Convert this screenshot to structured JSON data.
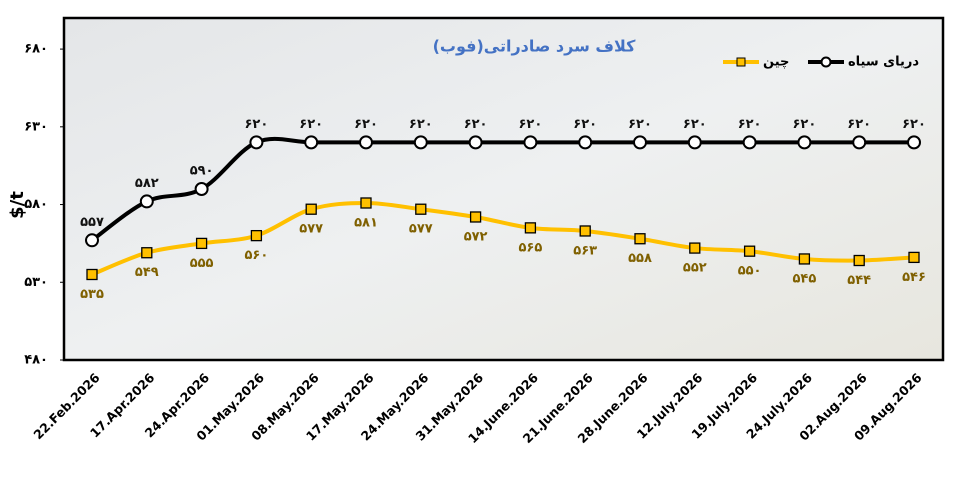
{
  "chart_data": {
    "type": "line",
    "title": "کلاف سرد صادراتی(فوب)",
    "y_label": "$/t",
    "categories": [
      "22.Feb.2026",
      "17.Apr.2026",
      "24.Apr.2026",
      "01.May.2026",
      "08.May.2026",
      "17.May.2026",
      "24.May.2026",
      "31.May.2026",
      "14.June.2026",
      "21.June.2026",
      "28.June.2026",
      "12.July.2026",
      "19.July.2026",
      "24.July.2026",
      "02.Aug.2026",
      "09.Aug.2026"
    ],
    "series": [
      {
        "name": "دریای سیاه",
        "color": "#000000",
        "marker": "circle",
        "values": [
          557,
          582,
          590,
          620,
          620,
          620,
          620,
          620,
          620,
          620,
          620,
          620,
          620,
          620,
          620,
          620
        ],
        "value_labels": [
          "۵۵۷",
          "۵۸۲",
          "۵۹۰",
          "۶۲۰",
          "۶۲۰",
          "۶۲۰",
          "۶۲۰",
          "۶۲۰",
          "۶۲۰",
          "۶۲۰",
          "۶۲۰",
          "۶۲۰",
          "۶۲۰",
          "۶۲۰",
          "۶۲۰",
          "۶۲۰"
        ]
      },
      {
        "name": "چین",
        "color": "#FFC000",
        "marker": "square",
        "values": [
          535,
          549,
          555,
          560,
          577,
          581,
          577,
          572,
          565,
          563,
          558,
          552,
          550,
          545,
          544,
          546
        ],
        "value_labels": [
          "۵۳۵",
          "۵۴۹",
          "۵۵۵",
          "۵۶۰",
          "۵۷۷",
          "۵۸۱",
          "۵۷۷",
          "۵۷۲",
          "۵۶۵",
          "۵۶۳",
          "۵۵۸",
          "۵۵۲",
          "۵۵۰",
          "۵۴۵",
          "۵۴۴",
          "۵۴۶"
        ]
      }
    ],
    "ylim": [
      480,
      700
    ],
    "yticks": [
      {
        "value": 480,
        "label": "۴۸۰"
      },
      {
        "value": 530,
        "label": "۵۳۰"
      },
      {
        "value": 580,
        "label": "۵۸۰"
      },
      {
        "value": 630,
        "label": "۶۳۰"
      },
      {
        "value": 680,
        "label": "۶۸۰"
      }
    ],
    "legend": "top-right"
  }
}
